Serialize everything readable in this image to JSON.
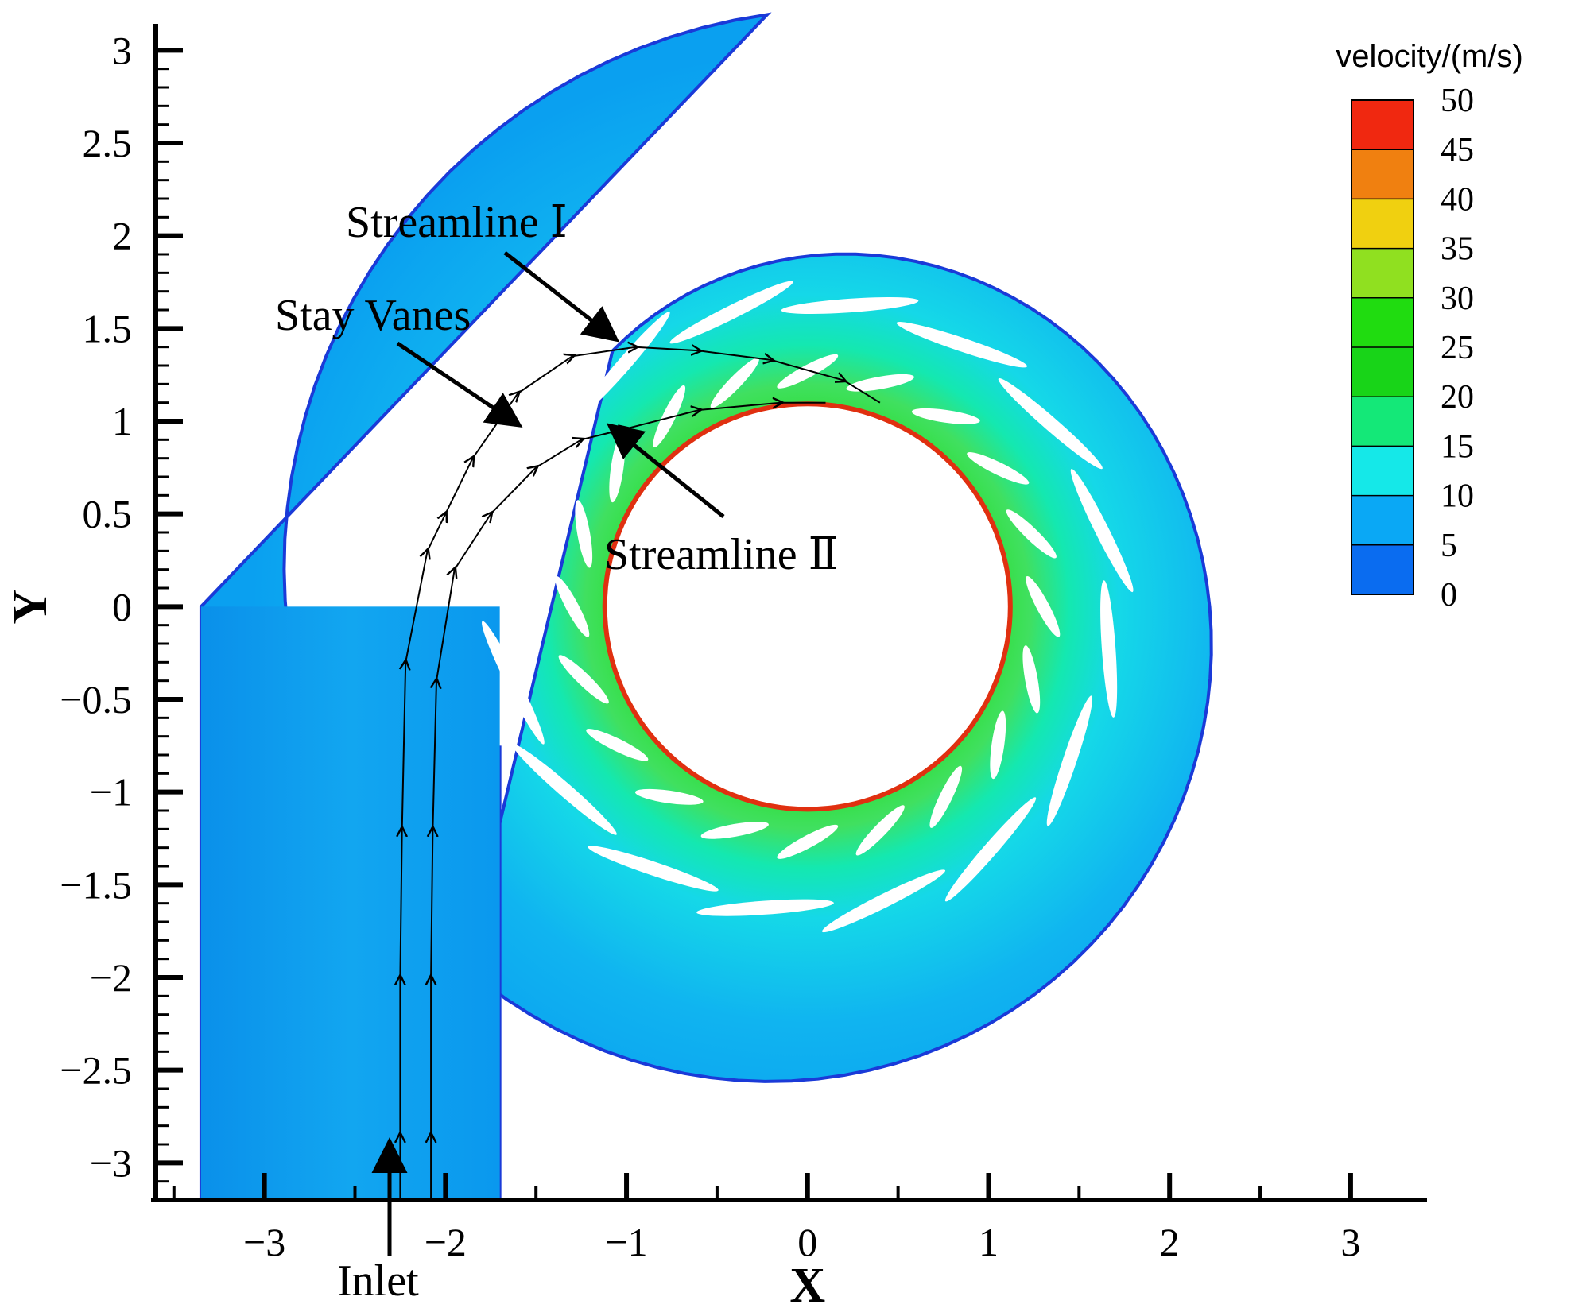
{
  "chart_data": {
    "type": "contour",
    "title": "",
    "xlabel": "X",
    "ylabel": "Y",
    "xlim": [
      -3.6,
      3.4
    ],
    "ylim": [
      -3.2,
      3.1
    ],
    "x_ticks": [
      -3,
      -2,
      -1,
      0,
      1,
      2,
      3
    ],
    "x_tick_labels": [
      "−3",
      "−2",
      "−1",
      "0",
      "1",
      "2",
      "3"
    ],
    "y_ticks": [
      3,
      2.5,
      2,
      1.5,
      1,
      0.5,
      0,
      -0.5,
      -1,
      -1.5,
      -2,
      -2.5,
      -3
    ],
    "y_tick_labels": [
      "3",
      "2.5",
      "2",
      "1.5",
      "1",
      "0.5",
      "0",
      "−0.5",
      "−1",
      "−1.5",
      "−2",
      "−2.5",
      "−3"
    ],
    "colorbar": {
      "title": "velocity/(m/s)",
      "min": 0,
      "max": 50,
      "levels": [
        "50",
        "45",
        "40",
        "35",
        "30",
        "25",
        "20",
        "15",
        "10",
        "5",
        "0"
      ],
      "colors": [
        "#1010ee",
        "#0a6cf0",
        "#0aa8f5",
        "#15e8e8",
        "#14e878",
        "#18d418",
        "#20dc10",
        "#90e020",
        "#f0d010",
        "#f08010",
        "#f02810"
      ]
    },
    "annotations": [
      {
        "text": "Streamline Ⅰ",
        "x": -0.95,
        "y": 1.4
      },
      {
        "text": "Stay Vanes",
        "x": -1.5,
        "y": 0.95
      },
      {
        "text": "Streamline Ⅱ",
        "x": -1.05,
        "y": 0.92
      },
      {
        "text": "Inlet",
        "x": -2.2,
        "y": -3.1
      }
    ],
    "geometry": {
      "runner_radius": 1.12,
      "guide_vane_count": 20,
      "stay_vane_count": 16,
      "inlet_x_range": [
        -3.35,
        -1.7
      ]
    }
  }
}
